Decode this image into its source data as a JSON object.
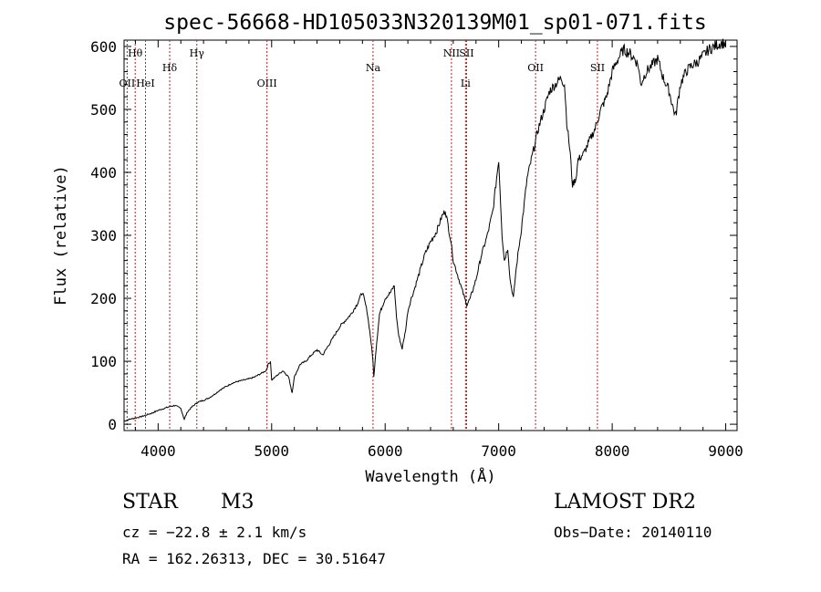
{
  "chart_data": {
    "type": "line",
    "title": "spec-56668-HD105033N320139M01_sp01-071.fits",
    "xlabel": "Wavelength (Å)",
    "ylabel": "Flux (relative)",
    "xlim": [
      3700,
      9100
    ],
    "ylim": [
      -10,
      610
    ],
    "xticks": [
      4000,
      5000,
      6000,
      7000,
      8000,
      9000
    ],
    "yticks": [
      0,
      100,
      200,
      300,
      400,
      500,
      600
    ],
    "grid": false,
    "line_color": "#000000",
    "marker_color": "#b22222",
    "series": [
      {
        "x": [
          3700,
          3750,
          3800,
          3850,
          3900,
          3950,
          4000,
          4050,
          4100,
          4150,
          4200,
          4230,
          4260,
          4300,
          4350,
          4400,
          4450,
          4500,
          4550,
          4600,
          4650,
          4700,
          4750,
          4800,
          4850,
          4900,
          4950,
          4970,
          4990,
          5000,
          5050,
          5100,
          5150,
          5180,
          5200,
          5250,
          5300,
          5350,
          5400,
          5450,
          5500,
          5550,
          5600,
          5650,
          5700,
          5750,
          5800,
          5840,
          5870,
          5893,
          5900,
          5920,
          5950,
          6000,
          6050,
          6080,
          6100,
          6120,
          6150,
          6180,
          6200,
          6230,
          6250,
          6300,
          6350,
          6400,
          6450,
          6500,
          6530,
          6560,
          6580,
          6600,
          6650,
          6700,
          6720,
          6750,
          6800,
          6850,
          6900,
          6950,
          7000,
          7030,
          7050,
          7080,
          7100,
          7130,
          7150,
          7170,
          7200,
          7250,
          7300,
          7350,
          7400,
          7450,
          7500,
          7550,
          7580,
          7600,
          7630,
          7650,
          7680,
          7700,
          7750,
          7800,
          7850,
          7900,
          7950,
          8000,
          8050,
          8100,
          8150,
          8200,
          8230,
          8250,
          8300,
          8350,
          8400,
          8450,
          8500,
          8540,
          8560,
          8600,
          8650,
          8700,
          8750,
          8800,
          8850,
          8900,
          8950,
          9000
        ],
        "y": [
          5,
          8,
          10,
          12,
          15,
          18,
          22,
          25,
          28,
          30,
          25,
          8,
          20,
          28,
          35,
          38,
          42,
          48,
          55,
          60,
          65,
          68,
          70,
          72,
          75,
          80,
          85,
          95,
          100,
          70,
          78,
          85,
          75,
          50,
          75,
          95,
          100,
          110,
          118,
          110,
          125,
          140,
          155,
          165,
          175,
          190,
          210,
          180,
          140,
          100,
          75,
          120,
          175,
          200,
          210,
          220,
          170,
          140,
          120,
          150,
          180,
          200,
          210,
          240,
          270,
          290,
          305,
          330,
          340,
          310,
          290,
          260,
          230,
          200,
          190,
          200,
          230,
          270,
          300,
          340,
          420,
          300,
          260,
          280,
          230,
          200,
          240,
          270,
          310,
          390,
          430,
          470,
          500,
          530,
          540,
          550,
          540,
          480,
          430,
          380,
          390,
          420,
          430,
          450,
          470,
          500,
          520,
          560,
          580,
          595,
          590,
          580,
          570,
          540,
          560,
          570,
          580,
          550,
          530,
          500,
          490,
          540,
          560,
          570,
          575,
          585,
          595,
          600,
          605,
          605
        ]
      }
    ],
    "markers": [
      {
        "label": "Hθ",
        "x": 3798
      },
      {
        "label": "OII",
        "x": 3727
      },
      {
        "label": "HeI",
        "x": 3889
      },
      {
        "label": "Hδ",
        "x": 4102
      },
      {
        "label": "Hγ",
        "x": 4341
      },
      {
        "label": "OIII",
        "x": 4959
      },
      {
        "label": "Na",
        "x": 5893
      },
      {
        "label": "NII",
        "x": 6584
      },
      {
        "label": "SII",
        "x": 6717
      },
      {
        "label": "Li",
        "x": 6708
      },
      {
        "label": "OII",
        "x": 7325
      },
      {
        "label": "SII",
        "x": 7870
      }
    ]
  },
  "info": {
    "class_label": "STAR",
    "subclass_label": "M3",
    "survey_label": "LAMOST DR2",
    "cz_text": "cz = −22.8 ± 2.1 km/s",
    "obs_date_text": "Obs−Date: 20140110",
    "radec_text": "RA = 162.26313, DEC =  30.51647"
  }
}
